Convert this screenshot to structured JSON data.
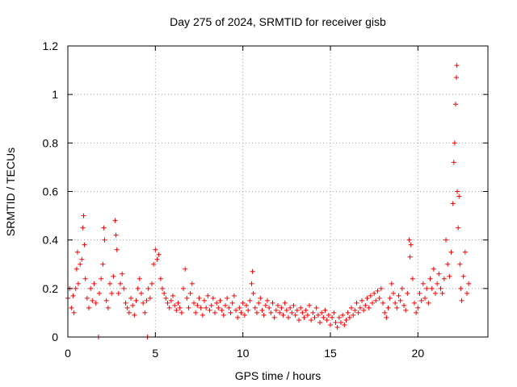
{
  "chart_data": {
    "type": "scatter",
    "title": "Day 275 of 2024, SRMTID for receiver gisb",
    "xlabel": "GPS time / hours",
    "ylabel": "SRMTID / TECUs",
    "xlim": [
      0,
      24
    ],
    "ylim": [
      0,
      1.2
    ],
    "xticks": [
      0,
      5,
      10,
      15,
      20
    ],
    "yticks": [
      0,
      0.2,
      0.4,
      0.6,
      0.8,
      1.0,
      1.2
    ],
    "xtick_labels": [
      "0",
      "5",
      "10",
      "15",
      "20"
    ],
    "ytick_labels": [
      "0",
      "0.2",
      "0.4",
      "0.6",
      "0.8",
      "1",
      "1.2"
    ],
    "grid": true,
    "marker": "+",
    "series": [
      {
        "name": "SRMTID",
        "color": "#ff0000",
        "points": [
          [
            0.0,
            0.16
          ],
          [
            0.1,
            0.2
          ],
          [
            0.2,
            0.12
          ],
          [
            0.3,
            0.17
          ],
          [
            0.35,
            0.1
          ],
          [
            0.45,
            0.2
          ],
          [
            0.5,
            0.28
          ],
          [
            0.55,
            0.35
          ],
          [
            0.6,
            0.22
          ],
          [
            0.7,
            0.3
          ],
          [
            0.8,
            0.32
          ],
          [
            0.85,
            0.45
          ],
          [
            0.9,
            0.5
          ],
          [
            0.95,
            0.38
          ],
          [
            1.0,
            0.24
          ],
          [
            1.1,
            0.16
          ],
          [
            1.2,
            0.12
          ],
          [
            1.3,
            0.2
          ],
          [
            1.4,
            0.15
          ],
          [
            1.5,
            0.22
          ],
          [
            1.6,
            0.14
          ],
          [
            1.75,
            0.0
          ],
          [
            1.8,
            0.18
          ],
          [
            1.9,
            0.24
          ],
          [
            2.0,
            0.3
          ],
          [
            2.05,
            0.45
          ],
          [
            2.1,
            0.4
          ],
          [
            2.2,
            0.15
          ],
          [
            2.3,
            0.12
          ],
          [
            2.4,
            0.22
          ],
          [
            2.5,
            0.18
          ],
          [
            2.6,
            0.25
          ],
          [
            2.7,
            0.48
          ],
          [
            2.75,
            0.42
          ],
          [
            2.8,
            0.36
          ],
          [
            2.9,
            0.18
          ],
          [
            3.0,
            0.22
          ],
          [
            3.1,
            0.26
          ],
          [
            3.2,
            0.2
          ],
          [
            3.3,
            0.14
          ],
          [
            3.4,
            0.12
          ],
          [
            3.5,
            0.1
          ],
          [
            3.6,
            0.16
          ],
          [
            3.7,
            0.13
          ],
          [
            3.8,
            0.09
          ],
          [
            3.9,
            0.15
          ],
          [
            4.0,
            0.2
          ],
          [
            4.1,
            0.24
          ],
          [
            4.2,
            0.18
          ],
          [
            4.3,
            0.14
          ],
          [
            4.4,
            0.1
          ],
          [
            4.5,
            0.15
          ],
          [
            4.55,
            0.0
          ],
          [
            4.6,
            0.2
          ],
          [
            4.7,
            0.16
          ],
          [
            4.8,
            0.22
          ],
          [
            4.9,
            0.3
          ],
          [
            5.0,
            0.36
          ],
          [
            5.1,
            0.32
          ],
          [
            5.2,
            0.34
          ],
          [
            5.3,
            0.24
          ],
          [
            5.4,
            0.2
          ],
          [
            5.5,
            0.18
          ],
          [
            5.6,
            0.16
          ],
          [
            5.7,
            0.14
          ],
          [
            5.8,
            0.12
          ],
          [
            5.9,
            0.15
          ],
          [
            6.0,
            0.17
          ],
          [
            6.1,
            0.13
          ],
          [
            6.2,
            0.11
          ],
          [
            6.3,
            0.14
          ],
          [
            6.4,
            0.12
          ],
          [
            6.5,
            0.1
          ],
          [
            6.6,
            0.2
          ],
          [
            6.7,
            0.28
          ],
          [
            6.8,
            0.16
          ],
          [
            6.9,
            0.12
          ],
          [
            7.0,
            0.18
          ],
          [
            7.1,
            0.22
          ],
          [
            7.2,
            0.14
          ],
          [
            7.3,
            0.1
          ],
          [
            7.4,
            0.13
          ],
          [
            7.5,
            0.16
          ],
          [
            7.6,
            0.12
          ],
          [
            7.7,
            0.09
          ],
          [
            7.8,
            0.15
          ],
          [
            7.9,
            0.12
          ],
          [
            8.0,
            0.17
          ],
          [
            8.1,
            0.11
          ],
          [
            8.2,
            0.13
          ],
          [
            8.3,
            0.16
          ],
          [
            8.4,
            0.1
          ],
          [
            8.5,
            0.14
          ],
          [
            8.6,
            0.12
          ],
          [
            8.7,
            0.15
          ],
          [
            8.8,
            0.11
          ],
          [
            8.9,
            0.09
          ],
          [
            9.0,
            0.13
          ],
          [
            9.1,
            0.16
          ],
          [
            9.2,
            0.12
          ],
          [
            9.3,
            0.1
          ],
          [
            9.4,
            0.14
          ],
          [
            9.5,
            0.17
          ],
          [
            9.6,
            0.11
          ],
          [
            9.7,
            0.08
          ],
          [
            9.8,
            0.12
          ],
          [
            9.9,
            0.1
          ],
          [
            10.0,
            0.14
          ],
          [
            10.1,
            0.09
          ],
          [
            10.2,
            0.13
          ],
          [
            10.3,
            0.11
          ],
          [
            10.4,
            0.15
          ],
          [
            10.5,
            0.22
          ],
          [
            10.55,
            0.27
          ],
          [
            10.6,
            0.18
          ],
          [
            10.7,
            0.12
          ],
          [
            10.8,
            0.1
          ],
          [
            10.9,
            0.14
          ],
          [
            11.0,
            0.16
          ],
          [
            11.1,
            0.11
          ],
          [
            11.2,
            0.09
          ],
          [
            11.3,
            0.13
          ],
          [
            11.4,
            0.15
          ],
          [
            11.5,
            0.12
          ],
          [
            11.6,
            0.1
          ],
          [
            11.7,
            0.14
          ],
          [
            11.8,
            0.08
          ],
          [
            11.9,
            0.11
          ],
          [
            12.0,
            0.13
          ],
          [
            12.1,
            0.1
          ],
          [
            12.2,
            0.12
          ],
          [
            12.3,
            0.09
          ],
          [
            12.4,
            0.14
          ],
          [
            12.5,
            0.11
          ],
          [
            12.6,
            0.08
          ],
          [
            12.7,
            0.12
          ],
          [
            12.8,
            0.1
          ],
          [
            12.9,
            0.13
          ],
          [
            13.0,
            0.09
          ],
          [
            13.1,
            0.11
          ],
          [
            13.2,
            0.07
          ],
          [
            13.3,
            0.12
          ],
          [
            13.4,
            0.1
          ],
          [
            13.5,
            0.08
          ],
          [
            13.6,
            0.11
          ],
          [
            13.7,
            0.09
          ],
          [
            13.8,
            0.13
          ],
          [
            13.9,
            0.07
          ],
          [
            14.0,
            0.1
          ],
          [
            14.1,
            0.08
          ],
          [
            14.2,
            0.12
          ],
          [
            14.3,
            0.09
          ],
          [
            14.4,
            0.06
          ],
          [
            14.5,
            0.1
          ],
          [
            14.6,
            0.08
          ],
          [
            14.7,
            0.11
          ],
          [
            14.8,
            0.07
          ],
          [
            14.9,
            0.09
          ],
          [
            15.0,
            0.05
          ],
          [
            15.1,
            0.08
          ],
          [
            15.2,
            0.1
          ],
          [
            15.3,
            0.06
          ],
          [
            15.4,
            0.04
          ],
          [
            15.5,
            0.08
          ],
          [
            15.6,
            0.06
          ],
          [
            15.7,
            0.09
          ],
          [
            15.8,
            0.05
          ],
          [
            15.9,
            0.07
          ],
          [
            16.0,
            0.1
          ],
          [
            16.1,
            0.08
          ],
          [
            16.2,
            0.12
          ],
          [
            16.3,
            0.09
          ],
          [
            16.4,
            0.11
          ],
          [
            16.5,
            0.14
          ],
          [
            16.6,
            0.1
          ],
          [
            16.7,
            0.12
          ],
          [
            16.8,
            0.15
          ],
          [
            16.9,
            0.11
          ],
          [
            17.0,
            0.13
          ],
          [
            17.1,
            0.16
          ],
          [
            17.2,
            0.12
          ],
          [
            17.3,
            0.17
          ],
          [
            17.4,
            0.14
          ],
          [
            17.5,
            0.18
          ],
          [
            17.6,
            0.15
          ],
          [
            17.7,
            0.19
          ],
          [
            17.8,
            0.16
          ],
          [
            17.9,
            0.2
          ],
          [
            18.0,
            0.14
          ],
          [
            18.1,
            0.1
          ],
          [
            18.2,
            0.08
          ],
          [
            18.3,
            0.12
          ],
          [
            18.4,
            0.16
          ],
          [
            18.5,
            0.22
          ],
          [
            18.6,
            0.18
          ],
          [
            18.7,
            0.14
          ],
          [
            18.8,
            0.12
          ],
          [
            18.9,
            0.17
          ],
          [
            19.0,
            0.15
          ],
          [
            19.1,
            0.2
          ],
          [
            19.2,
            0.13
          ],
          [
            19.3,
            0.11
          ],
          [
            19.4,
            0.18
          ],
          [
            19.5,
            0.4
          ],
          [
            19.55,
            0.33
          ],
          [
            19.6,
            0.38
          ],
          [
            19.7,
            0.24
          ],
          [
            19.8,
            0.14
          ],
          [
            19.9,
            0.1
          ],
          [
            20.0,
            0.12
          ],
          [
            20.1,
            0.18
          ],
          [
            20.2,
            0.15
          ],
          [
            20.3,
            0.22
          ],
          [
            20.4,
            0.16
          ],
          [
            20.5,
            0.2
          ],
          [
            20.6,
            0.14
          ],
          [
            20.7,
            0.24
          ],
          [
            20.8,
            0.2
          ],
          [
            20.9,
            0.28
          ],
          [
            21.0,
            0.18
          ],
          [
            21.1,
            0.22
          ],
          [
            21.2,
            0.26
          ],
          [
            21.3,
            0.2
          ],
          [
            21.4,
            0.18
          ],
          [
            21.5,
            0.24
          ],
          [
            21.6,
            0.4
          ],
          [
            21.7,
            0.3
          ],
          [
            21.8,
            0.25
          ],
          [
            21.9,
            0.35
          ],
          [
            22.0,
            0.55
          ],
          [
            22.05,
            0.72
          ],
          [
            22.1,
            0.8
          ],
          [
            22.15,
            0.96
          ],
          [
            22.2,
            1.07
          ],
          [
            22.22,
            1.12
          ],
          [
            22.25,
            0.6
          ],
          [
            22.3,
            0.45
          ],
          [
            22.35,
            0.58
          ],
          [
            22.4,
            0.3
          ],
          [
            22.45,
            0.2
          ],
          [
            22.5,
            0.15
          ],
          [
            22.6,
            0.25
          ],
          [
            22.7,
            0.35
          ],
          [
            22.8,
            0.18
          ],
          [
            22.9,
            0.22
          ]
        ]
      }
    ]
  }
}
